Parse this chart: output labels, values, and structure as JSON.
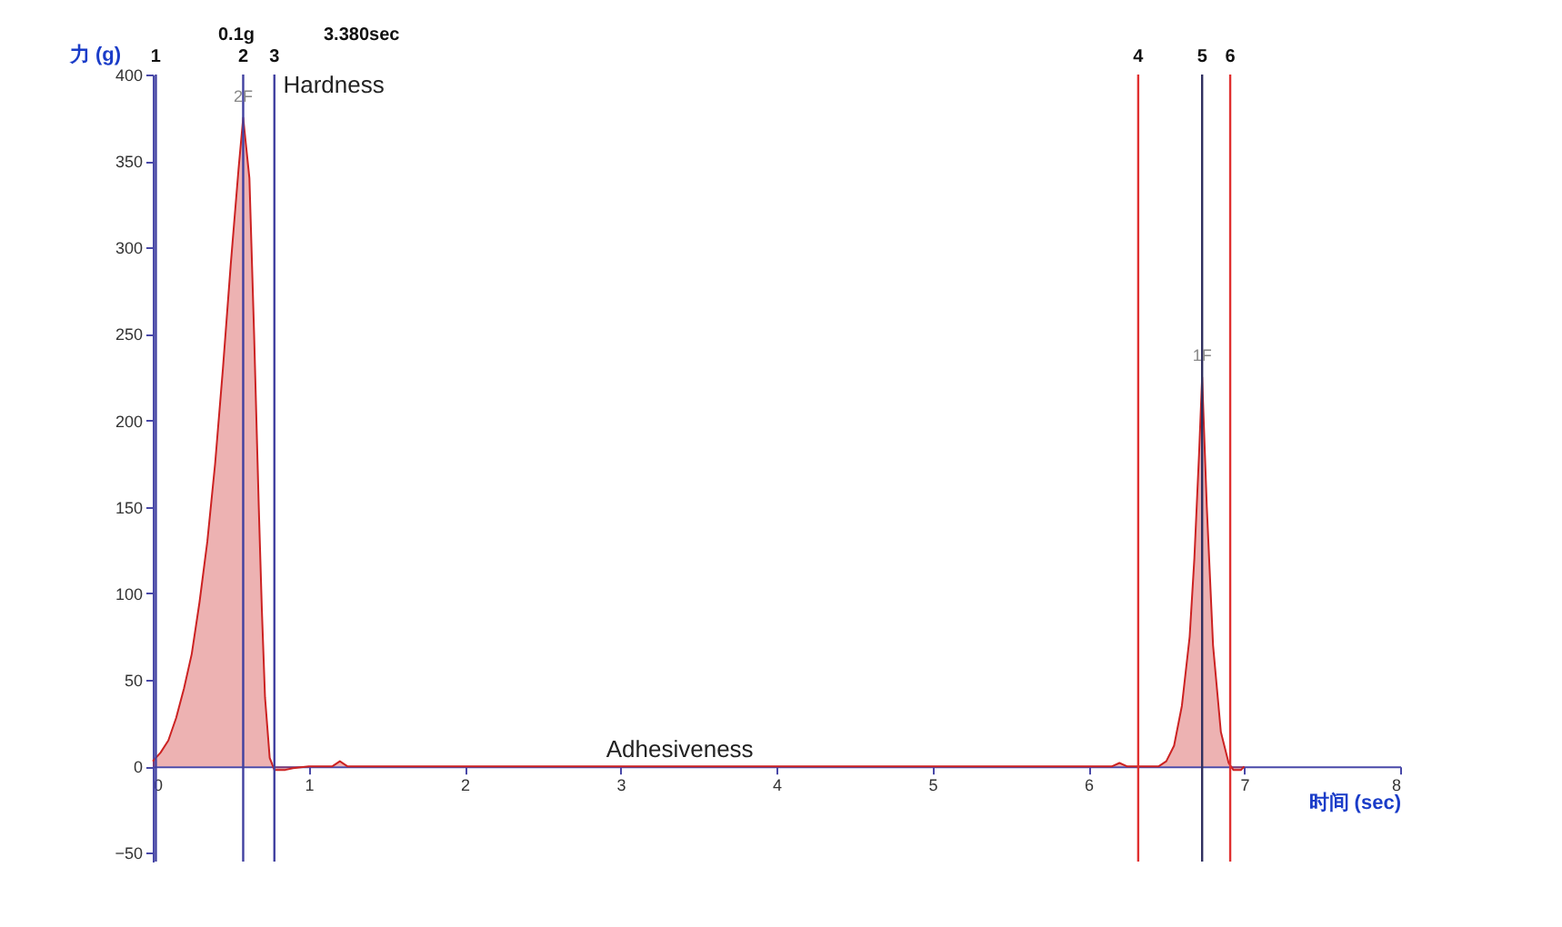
{
  "chart_data": {
    "type": "area",
    "xlabel": "时间 (sec)",
    "ylabel": "力 (g)",
    "xlim": [
      0,
      8
    ],
    "ylim": [
      -55,
      400
    ],
    "xticks": [
      0,
      1,
      2,
      3,
      4,
      5,
      6,
      7,
      8
    ],
    "yticks": [
      -50,
      0,
      50,
      100,
      150,
      200,
      250,
      300,
      350,
      400
    ],
    "grid": false,
    "series": [
      {
        "color": "#cc2222",
        "x": [
          0,
          0.05,
          0.1,
          0.15,
          0.2,
          0.25,
          0.3,
          0.35,
          0.4,
          0.45,
          0.5,
          0.55,
          0.58,
          0.62,
          0.65,
          0.68,
          0.7,
          0.72,
          0.75,
          0.78,
          0.85,
          0.9,
          1.0,
          1.15,
          1.2,
          1.25,
          2,
          3,
          4,
          5,
          6.15,
          6.2,
          6.25,
          6.45,
          6.5,
          6.55,
          6.6,
          6.65,
          6.68,
          6.71,
          6.73,
          6.76,
          6.8,
          6.85,
          6.9,
          6.93,
          6.98,
          7.0
        ],
        "values": [
          3,
          8,
          15,
          28,
          45,
          65,
          95,
          130,
          175,
          230,
          290,
          345,
          375,
          340,
          250,
          150,
          90,
          40,
          5,
          -2,
          -2,
          -1,
          0,
          0,
          3,
          0,
          0,
          0,
          0,
          0,
          0,
          2,
          0,
          0,
          3,
          12,
          35,
          75,
          120,
          180,
          225,
          150,
          70,
          20,
          2,
          -2,
          -2,
          0
        ]
      }
    ],
    "ref_lines": [
      {
        "axis": "x",
        "value": 0.02,
        "color": "#4040a0"
      },
      {
        "axis": "x",
        "value": 0.58,
        "color": "#4040a0"
      },
      {
        "axis": "x",
        "value": 0.78,
        "color": "#4040a0"
      },
      {
        "axis": "x",
        "value": 6.32,
        "color": "#e03030"
      },
      {
        "axis": "x",
        "value": 6.73,
        "color": "#303060"
      },
      {
        "axis": "x",
        "value": 6.91,
        "color": "#e03030"
      }
    ],
    "annotations": [
      "0.1g",
      "3.380sec",
      {
        "text": "1",
        "x": 0.02,
        "y": 400
      },
      {
        "text": "2",
        "x": 0.58,
        "y": 400
      },
      {
        "text": "3",
        "x": 0.78,
        "y": 400
      },
      {
        "text": "4",
        "x": 6.32,
        "y": 400
      },
      {
        "text": "5",
        "x": 6.73,
        "y": 400
      },
      {
        "text": "6",
        "x": 6.91,
        "y": 400
      },
      {
        "text": "2F",
        "x": 0.58,
        "y": 375
      },
      {
        "text": "Hardness",
        "x": 0.58,
        "y": 375
      },
      {
        "text": "1F",
        "x": 6.73,
        "y": 225
      },
      {
        "text": "Adhesiveness",
        "x": 3.38,
        "y": 0
      }
    ]
  }
}
